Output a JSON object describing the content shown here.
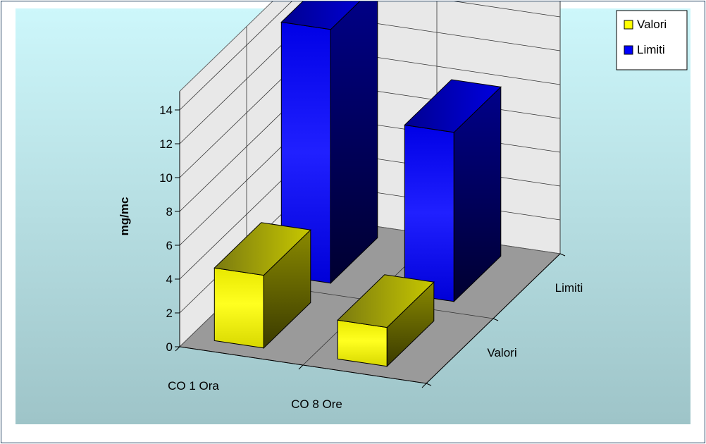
{
  "chart_data": {
    "type": "bar",
    "categories": [
      "CO 1 Ora",
      "CO 8 Ore"
    ],
    "series": [
      {
        "name": "Valori",
        "values": [
          4.3,
          2.3
        ],
        "color": "#ffff00"
      },
      {
        "name": "Limiti",
        "values": [
          15,
          10
        ],
        "color": "#0000ff"
      }
    ],
    "ylabel": "mg/mc",
    "xlabel": "",
    "ylim": [
      0,
      14
    ],
    "yticks": [
      0,
      2,
      4,
      6,
      8,
      10,
      12,
      14
    ],
    "grid": true,
    "legend": "top-right",
    "background": "#b8e8ee",
    "wall_color": "#e8e8e8",
    "floor_color": "#9a9a9a"
  }
}
